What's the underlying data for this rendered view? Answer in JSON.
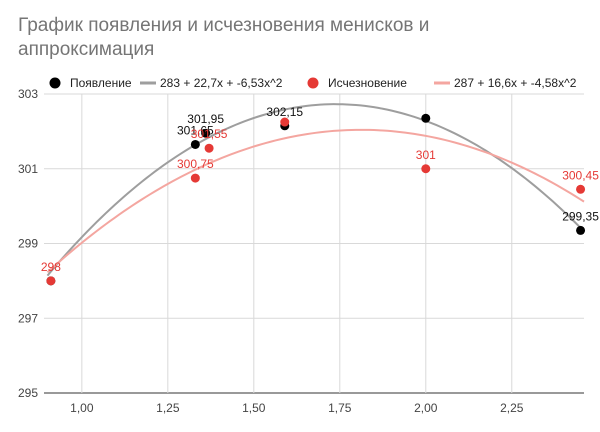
{
  "chart_data": {
    "type": "scatter",
    "title": "График появления и исчезновения менисков и аппроксимация",
    "xlabel": "",
    "ylabel": "",
    "xlim": [
      0.89,
      2.46
    ],
    "ylim": [
      295,
      303
    ],
    "x_ticks": [
      "1,00",
      "1,25",
      "1,50",
      "1,75",
      "2,00",
      "2,25"
    ],
    "x_tick_values": [
      1.0,
      1.25,
      1.5,
      1.75,
      2.0,
      2.25
    ],
    "y_ticks": [
      "295",
      "297",
      "299",
      "301",
      "303"
    ],
    "y_tick_values": [
      295,
      297,
      299,
      301,
      303
    ],
    "grid": true,
    "legend_position": "top",
    "legend": [
      {
        "kind": "marker",
        "label": "Появление",
        "color": "#000000"
      },
      {
        "kind": "line",
        "label": "283 + 22,7x + -6,53x^2",
        "color": "#9e9e9e"
      },
      {
        "kind": "marker",
        "label": "Исчезновение",
        "color": "#e53935"
      },
      {
        "kind": "line",
        "label": "287 + 16,6x + -4,58x^2",
        "color": "#f4a6a0"
      }
    ],
    "series": [
      {
        "name": "Появление",
        "color": "#000000",
        "points": [
          {
            "x": 0.91,
            "y": 298.0,
            "label": ""
          },
          {
            "x": 1.33,
            "y": 301.65,
            "label": "301,65"
          },
          {
            "x": 1.36,
            "y": 301.95,
            "label": "301,95"
          },
          {
            "x": 1.59,
            "y": 302.15,
            "label": "302,15"
          },
          {
            "x": 2.0,
            "y": 302.35,
            "label": ""
          },
          {
            "x": 2.45,
            "y": 299.35,
            "label": "299,35"
          }
        ]
      },
      {
        "name": "Исчезновение",
        "color": "#e53935",
        "points": [
          {
            "x": 0.91,
            "y": 298.0,
            "label": "298"
          },
          {
            "x": 1.33,
            "y": 300.75,
            "label": "300,75"
          },
          {
            "x": 1.37,
            "y": 301.55,
            "label": "301,55"
          },
          {
            "x": 1.59,
            "y": 302.25,
            "label": ""
          },
          {
            "x": 2.0,
            "y": 301.0,
            "label": "301"
          },
          {
            "x": 2.45,
            "y": 300.45,
            "label": "300,45"
          }
        ]
      }
    ],
    "trendlines": [
      {
        "name": "283 + 22,7x + -6,53x^2",
        "color": "#9e9e9e",
        "coefficients": [
          283,
          22.7,
          -6.53
        ],
        "x_range": [
          0.9,
          2.46
        ]
      },
      {
        "name": "287 + 16,6x + -4,58x^2",
        "color": "#f4a6a0",
        "coefficients": [
          287,
          16.6,
          -4.58
        ],
        "x_range": [
          0.9,
          2.46
        ]
      }
    ]
  }
}
